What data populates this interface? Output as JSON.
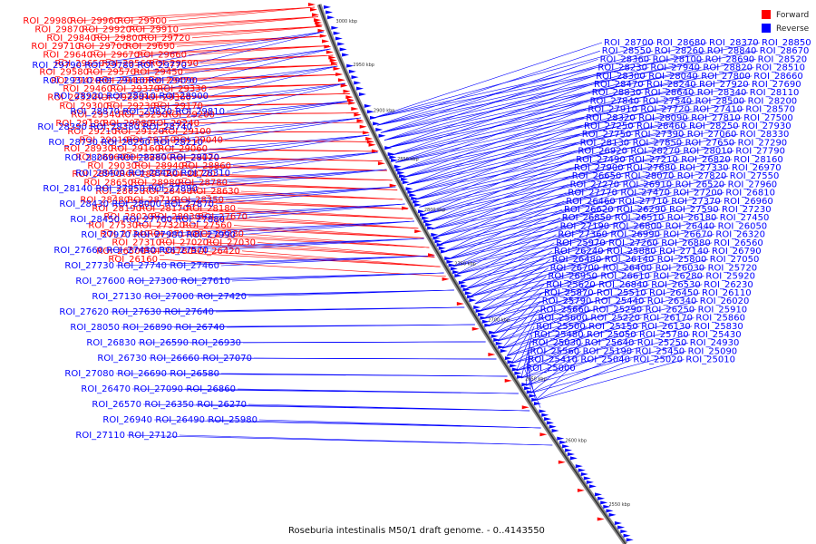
{
  "caption": "Roseburia intestinalis M50/1 draft genome. - 0..4143550",
  "legend": [
    {
      "label": "Forward",
      "color": "#ff0000"
    },
    {
      "label": "Reverse",
      "color": "#0000ff"
    }
  ],
  "colors": {
    "forward": "#ff0000",
    "reverse": "#0000ff",
    "backbone": "#888888"
  },
  "tick_labels": [
    "3000 kbp",
    "2950 kbp",
    "2900 kbp",
    "2850 kbp",
    "2800 kbp",
    "2750 kbp",
    "2700 kbp",
    "2650 kbp",
    "2600 kbp",
    "2550 kbp"
  ],
  "forward_labels": [
    "ROI_29980",
    "ROI_29960",
    "ROI_29900",
    "ROI_29870",
    "ROI_29920",
    "ROI_29910",
    "ROI_29840",
    "ROI_29800",
    "ROI_29720",
    "ROI_29710",
    "ROI_29700",
    "ROI_29690",
    "ROI_29640",
    "ROI_29670",
    "ROI_29660",
    "ROI_29650",
    "ROI_29560",
    "ROI_29590",
    "ROI_29580",
    "ROI_29570",
    "ROI_29450",
    "ROI_29420",
    "ROI_29480",
    "ROI_29470",
    "ROI_29460",
    "ROI_29370",
    "ROI_29330",
    "ROI_29320",
    "ROI_29220",
    "ROI_29360",
    "ROI_29300",
    "ROI_29230",
    "ROI_29170",
    "ROI_29340",
    "ROI_29290",
    "ROI_29200",
    "ROI_29180",
    "ROI_29080",
    "ROI_29240",
    "ROI_29210",
    "ROI_29120",
    "ROI_29100",
    "ROI_29010",
    "ROI_29150",
    "ROI_29040",
    "ROI_28930",
    "ROI_29160",
    "ROI_29060",
    "ROI_28960",
    "ROI_28800",
    "ROI_29070",
    "ROI_29030",
    "ROI_28940",
    "ROI_28860",
    "ROI_28950",
    "ROI_28970",
    "ROI_28770",
    "ROI_28650",
    "ROI_28980",
    "ROI_28780",
    "ROI_28620",
    "ROI_28490",
    "ROI_28630",
    "ROI_28480",
    "ROI_28710",
    "ROI_28350",
    "ROI_28190",
    "ROI_28170",
    "ROI_28180",
    "ROI_28020",
    "ROI_28030",
    "ROI_27670",
    "ROI_27530",
    "ROI_27320",
    "ROI_27560",
    "ROI_27340",
    "ROI_27170",
    "ROI_27280",
    "ROI_27310",
    "ROI_27020",
    "ROI_27030",
    "ROI_26500",
    "ROI_26780",
    "ROI_26420",
    "ROI_26160"
  ],
  "reverse_labels": [
    "ROI_29790",
    "ROI_29780",
    "ROI_29770",
    "ROI_29310",
    "ROI_29110",
    "ROI_29090",
    "ROI_28920",
    "ROI_28910",
    "ROI_28900",
    "ROI_28870",
    "ROI_29820",
    "ROI_29810",
    "ROI_28390",
    "ROI_28380",
    "ROI_28740",
    "ROI_28730",
    "ROI_28290",
    "ROI_28210",
    "ROI_28060",
    "ROI_28280",
    "ROI_28120",
    "ROI_28400",
    "ROI_28420",
    "ROI_28310",
    "ROI_28140",
    "ROI_27950",
    "ROI_27890",
    "ROI_28430",
    "ROI_28000",
    "ROI_27870",
    "ROI_28450",
    "ROI_27760",
    "ROI_27880",
    "ROI_27970",
    "ROI_27980",
    "ROI_27990",
    "ROI_27660",
    "ROI_27430",
    "ROI_27570",
    "ROI_27730",
    "ROI_27740",
    "ROI_27460",
    "ROI_27600",
    "ROI_27300",
    "ROI_27610",
    "ROI_27130",
    "ROI_27000",
    "ROI_27420",
    "ROI_27620",
    "ROI_27630",
    "ROI_27640",
    "ROI_28050",
    "ROI_26890",
    "ROI_26740",
    "ROI_26830",
    "ROI_26590",
    "ROI_26930",
    "ROI_26730",
    "ROI_26660",
    "ROI_27070",
    "ROI_27080",
    "ROI_26690",
    "ROI_26580",
    "ROI_26470",
    "ROI_27090",
    "ROI_26860",
    "ROI_26570",
    "ROI_26350",
    "ROI_26270",
    "ROI_26940",
    "ROI_26490",
    "ROI_25980",
    "ROI_27110",
    "ROI_27120",
    "ROI_28700",
    "ROI_28680",
    "ROI_28370",
    "ROI_28850",
    "ROI_28550",
    "ROI_28260",
    "ROI_28840",
    "ROI_28670",
    "ROI_28360",
    "ROI_28100",
    "ROI_28690",
    "ROI_28520",
    "ROI_28230",
    "ROI_27940",
    "ROI_28820",
    "ROI_28510",
    "ROI_28300",
    "ROI_28040",
    "ROI_27800",
    "ROI_28660",
    "ROI_28470",
    "ROI_28240",
    "ROI_27920",
    "ROI_27690",
    "ROI_28830",
    "ROI_28640",
    "ROI_28340",
    "ROI_28110",
    "ROI_27840",
    "ROI_27540",
    "ROI_28500",
    "ROI_28200",
    "ROI_27910",
    "ROI_27720",
    "ROI_27410",
    "ROI_28570",
    "ROI_28320",
    "ROI_28090",
    "ROI_27810",
    "ROI_27500",
    "ROI_27250",
    "ROI_28460",
    "ROI_28250",
    "ROI_27930",
    "ROI_27750",
    "ROI_27390",
    "ROI_27060",
    "ROI_28330",
    "ROI_28130",
    "ROI_27850",
    "ROI_27650",
    "ROI_27290",
    "ROI_26920",
    "ROI_28270",
    "ROI_28010",
    "ROI_27790",
    "ROI_27490",
    "ROI_27210",
    "ROI_26820",
    "ROI_28160",
    "ROI_27900",
    "ROI_27680",
    "ROI_27330",
    "ROI_26970",
    "ROI_26650",
    "ROI_28070",
    "ROI_27820",
    "ROI_27550",
    "ROI_27270",
    "ROI_26910",
    "ROI_26520",
    "ROI_27960",
    "ROI_27770",
    "ROI_27470",
    "ROI_27200",
    "ROI_26810",
    "ROI_26460",
    "ROI_27710",
    "ROI_27370",
    "ROI_26960",
    "ROI_26620",
    "ROI_26290",
    "ROI_27590",
    "ROI_27230",
    "ROI_26850",
    "ROI_26510",
    "ROI_26180",
    "ROI_27450",
    "ROI_27190",
    "ROI_26800",
    "ROI_26440",
    "ROI_26050",
    "ROI_27360",
    "ROI_26990",
    "ROI_26670",
    "ROI_26320",
    "ROI_25970",
    "ROI_27260",
    "ROI_26880",
    "ROI_26560",
    "ROI_26240",
    "ROI_25880",
    "ROI_27140",
    "ROI_26790",
    "ROI_26480",
    "ROI_26140",
    "ROI_25800",
    "ROI_27050",
    "ROI_26700",
    "ROI_26400",
    "ROI_26030",
    "ROI_25720",
    "ROI_26950",
    "ROI_26610",
    "ROI_26280",
    "ROI_25920",
    "ROI_25620",
    "ROI_26840",
    "ROI_26530",
    "ROI_26230",
    "ROI_25870",
    "ROI_25510",
    "ROI_26450",
    "ROI_26110",
    "ROI_25790",
    "ROI_25440",
    "ROI_26340",
    "ROI_26020",
    "ROI_25660",
    "ROI_25290",
    "ROI_26250",
    "ROI_25910",
    "ROI_25600",
    "ROI_25220",
    "ROI_26170",
    "ROI_25860",
    "ROI_25500",
    "ROI_25150",
    "ROI_26130",
    "ROI_25830",
    "ROI_25480",
    "ROI_25050",
    "ROI_25780",
    "ROI_25430",
    "ROI_25030",
    "ROI_25640",
    "ROI_25250",
    "ROI_24930",
    "ROI_25560",
    "ROI_25190",
    "ROI_25450",
    "ROI_25090",
    "ROI_25410",
    "ROI_25040",
    "ROI_25020",
    "ROI_25010",
    "ROI_25000"
  ]
}
